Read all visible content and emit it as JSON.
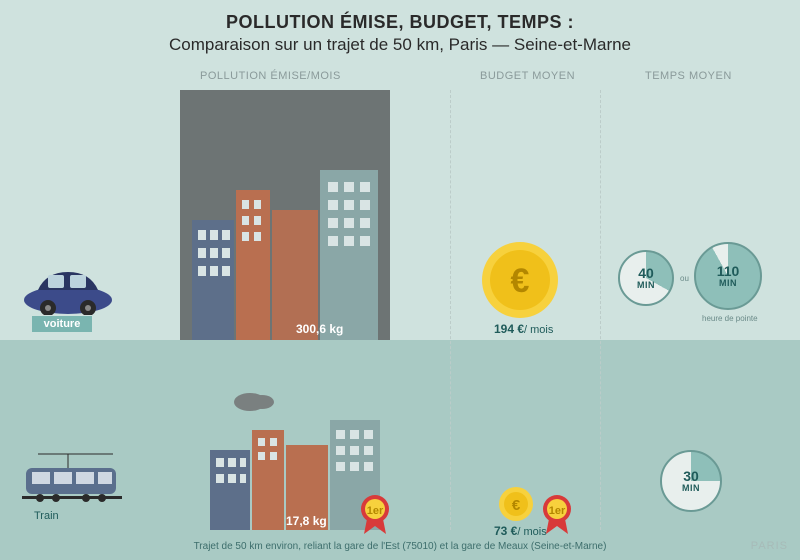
{
  "colors": {
    "bg_top": "#cfe2de",
    "bg_bot": "#a9cac4",
    "header_text": "#2a2a2a",
    "divider": "#bcccc9",
    "col_label": "#8a9a9a",
    "car_body": "#3c4b8a",
    "car_dark": "#2a3562",
    "car_label_bg": "#7ab5b0",
    "train_body": "#5a6f8d",
    "train_light": "#cfd8e2",
    "pollution_box": "#6d7474",
    "cloud": "#7a8080",
    "building1": "#5d6f8a",
    "building2": "#b96f50",
    "building3": "#8aa7a7",
    "coin_outer": "#f7d13d",
    "coin_inner": "#f0c01a",
    "time_fill": "#8ebfb9",
    "time_bg": "#e8efed",
    "time_border": "#6a9a95",
    "badge_red": "#d83a3a",
    "badge_gold": "#f7d13d"
  },
  "header": {
    "line1": "POLLUTION ÉMISE, BUDGET, TEMPS :",
    "line2": "Comparaison sur un trajet de 50 km, Paris — Seine-et-Marne"
  },
  "columns": {
    "pollution": "POLLUTION ÉMISE/MOIS",
    "budget": "BUDGET MOYEN",
    "time": "TEMPS MOYEN"
  },
  "column_x": {
    "pollution": 260,
    "budget": 520,
    "time": 680
  },
  "divider_x": [
    450,
    600
  ],
  "rows": {
    "car": {
      "label": "voiture",
      "pollution": "300,6 kg",
      "budget_value": "194 €",
      "budget_unit": "/ mois",
      "time": [
        {
          "value": "40",
          "unit": "MIN",
          "fill_pct": 0.33
        },
        {
          "value": "110",
          "unit": "MIN",
          "fill_pct": 0.92
        }
      ],
      "time_note_between": "ou",
      "time_note_under": "heure de pointe"
    },
    "train": {
      "label": "Train",
      "pollution": "17,8 kg",
      "budget_value": "73 €",
      "budget_unit": "/ mois",
      "time": [
        {
          "value": "30",
          "unit": "MIN",
          "fill_pct": 0.25
        }
      ],
      "winner_badges": true
    }
  },
  "footnote": "Trajet de 50 km environ, reliant la gare de l'Est (75010) et la gare de Meaux (Seine-et-Marne)",
  "logo": "PARIS"
}
